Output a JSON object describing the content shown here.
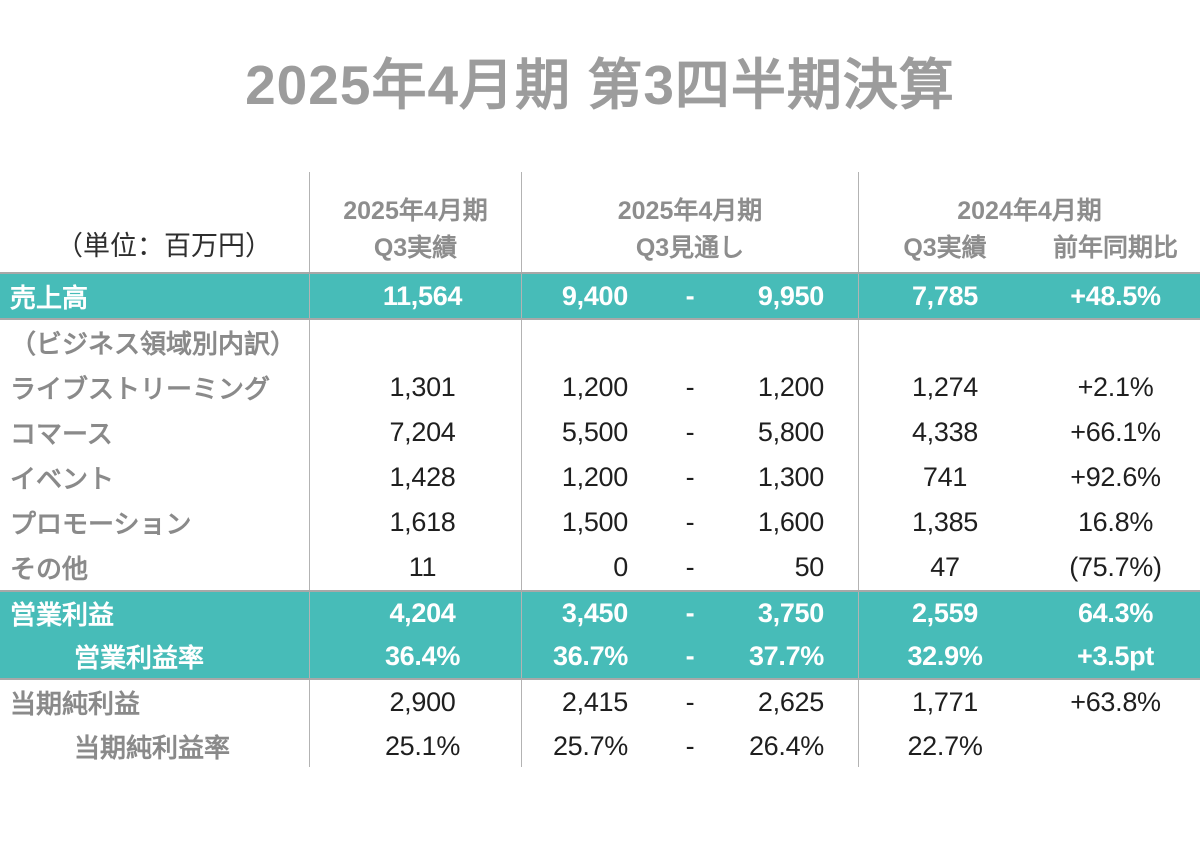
{
  "title": "2025年4月期 第3四半期決算",
  "colors": {
    "accent_teal": "#47BCB8",
    "title_gray": "#9C9C9C",
    "header_gray": "#8D8D8D",
    "label_gray": "#8A8A8A",
    "number_black": "#1F1F1F",
    "line_gray": "#A8A8A8"
  },
  "table": {
    "unit_label": "（単位：百万円）",
    "headers": {
      "actual_2025": {
        "line1": "2025年4月期",
        "line2": "Q3実績"
      },
      "forecast_2025": {
        "line1": "2025年4月期",
        "line2": "Q3見通し"
      },
      "py_2024": {
        "line1": "2024年4月期",
        "line2_left": "Q3実績",
        "line2_right": "前年同期比"
      }
    },
    "rows": [
      {
        "label": "売上高",
        "style": "highlight",
        "indent": false,
        "actual": "11,564",
        "low": "9,400",
        "dash": "-",
        "high": "9,950",
        "py": "7,785",
        "yoy": "+48.5%"
      },
      {
        "label": "（ビジネス領域別内訳）",
        "style": "section",
        "indent": false,
        "actual": "",
        "low": "",
        "dash": "",
        "high": "",
        "py": "",
        "yoy": ""
      },
      {
        "label": "ライブストリーミング",
        "style": "normal",
        "indent": false,
        "actual": "1,301",
        "low": "1,200",
        "dash": "-",
        "high": "1,200",
        "py": "1,274",
        "yoy": "+2.1%"
      },
      {
        "label": "コマース",
        "style": "normal",
        "indent": false,
        "actual": "7,204",
        "low": "5,500",
        "dash": "-",
        "high": "5,800",
        "py": "4,338",
        "yoy": "+66.1%"
      },
      {
        "label": "イベント",
        "style": "normal",
        "indent": false,
        "actual": "1,428",
        "low": "1,200",
        "dash": "-",
        "high": "1,300",
        "py": "741",
        "yoy": "+92.6%"
      },
      {
        "label": "プロモーション",
        "style": "normal",
        "indent": false,
        "actual": "1,618",
        "low": "1,500",
        "dash": "-",
        "high": "1,600",
        "py": "1,385",
        "yoy": "16.8%"
      },
      {
        "label": "その他",
        "style": "normal",
        "indent": false,
        "actual": "11",
        "low": "0",
        "dash": "-",
        "high": "50",
        "py": "47",
        "yoy": "(75.7%)"
      },
      {
        "label": "営業利益",
        "style": "highlight",
        "indent": false,
        "actual": "4,204",
        "low": "3,450",
        "dash": "-",
        "high": "3,750",
        "py": "2,559",
        "yoy": "64.3%"
      },
      {
        "label": "営業利益率",
        "style": "highlight",
        "indent": true,
        "actual": "36.4%",
        "low": "36.7%",
        "dash": "-",
        "high": "37.7%",
        "py": "32.9%",
        "yoy": "+3.5pt"
      },
      {
        "label": "当期純利益",
        "style": "normal",
        "indent": false,
        "actual": "2,900",
        "low": "2,415",
        "dash": "-",
        "high": "2,625",
        "py": "1,771",
        "yoy": "+63.8%"
      },
      {
        "label": "当期純利益率",
        "style": "normal",
        "indent": true,
        "actual": "25.1%",
        "low": "25.7%",
        "dash": "-",
        "high": "26.4%",
        "py": "22.7%",
        "yoy": ""
      }
    ]
  }
}
